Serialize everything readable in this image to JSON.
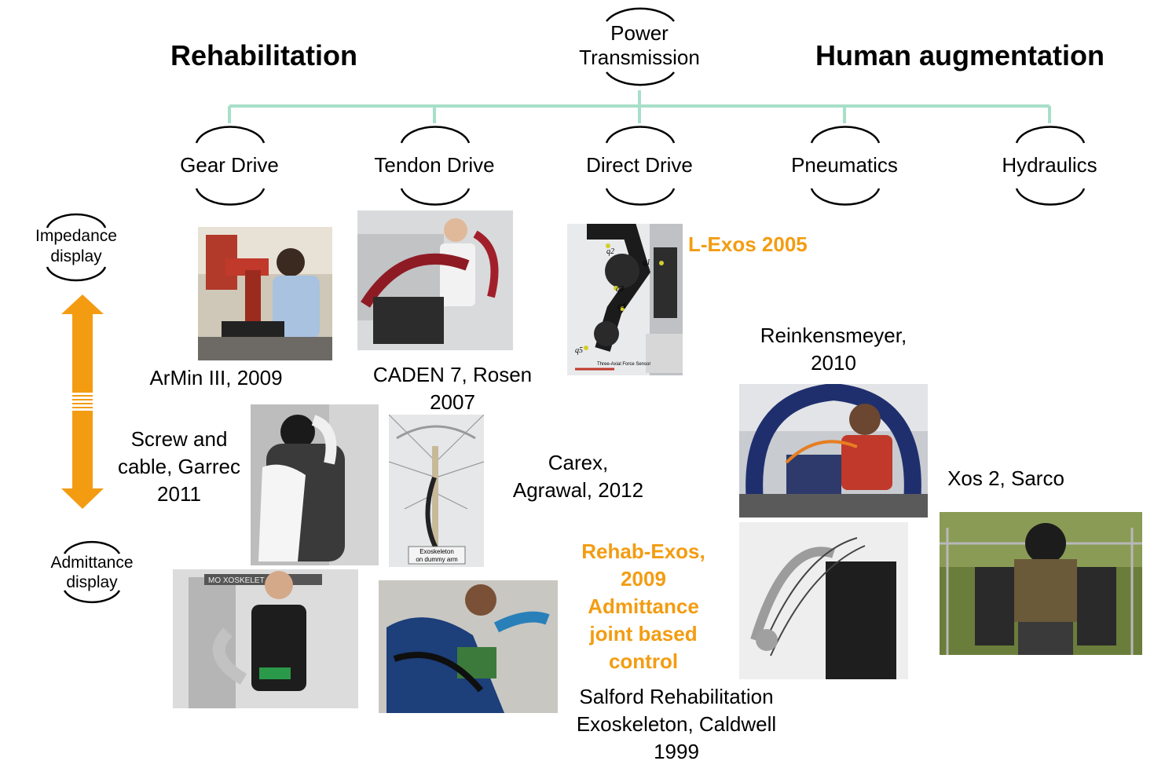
{
  "headings": {
    "left": "Rehabilitation",
    "right": "Human augmentation"
  },
  "root": {
    "line1": "Power",
    "line2": "Transmission"
  },
  "categories": [
    "Gear Drive",
    "Tendon Drive",
    "Direct Drive",
    "Pneumatics",
    "Hydraulics"
  ],
  "axis": {
    "top": {
      "line1": "Impedance",
      "line2": "display"
    },
    "bottom": {
      "line1": "Admittance",
      "line2": "display"
    }
  },
  "examples": {
    "armin": {
      "line1": "ArMin III, 2009"
    },
    "caden": {
      "line1": "CADEN 7, Rosen",
      "line2": "2007"
    },
    "lexos": {
      "line1": "L-Exos 2005"
    },
    "reink": {
      "line1": "Reinkensmeyer,",
      "line2": "2010"
    },
    "garrec": {
      "line1": "Screw and",
      "line2": "cable, Garrec",
      "line3": "2011"
    },
    "carex": {
      "line1": "Carex,",
      "line2": "Agrawal, 2012"
    },
    "xos": {
      "line1": "Xos 2, Sarco"
    },
    "rehab": {
      "line1": "Rehab-Exos,",
      "line2": "2009",
      "line3": "Admittance",
      "line4": "joint based",
      "line5": "control"
    },
    "salford": {
      "line1": "Salford Rehabilitation",
      "line2": "Exoskeleton, Caldwell",
      "line3": "1999"
    }
  },
  "photo_captions": {
    "carex_inset": {
      "line1": "Exoskeleton",
      "line2": "on dummy arm"
    },
    "lexos_inset": "Three-Axial Force Sensor",
    "lexos_joints": [
      "q2",
      "q1",
      "q3",
      "q4",
      "q5"
    ],
    "exo_sign": "MO  XOSKELET"
  },
  "colors": {
    "connector": "#a8dfc8",
    "accent": "#f39c12",
    "arc": "#000000"
  }
}
